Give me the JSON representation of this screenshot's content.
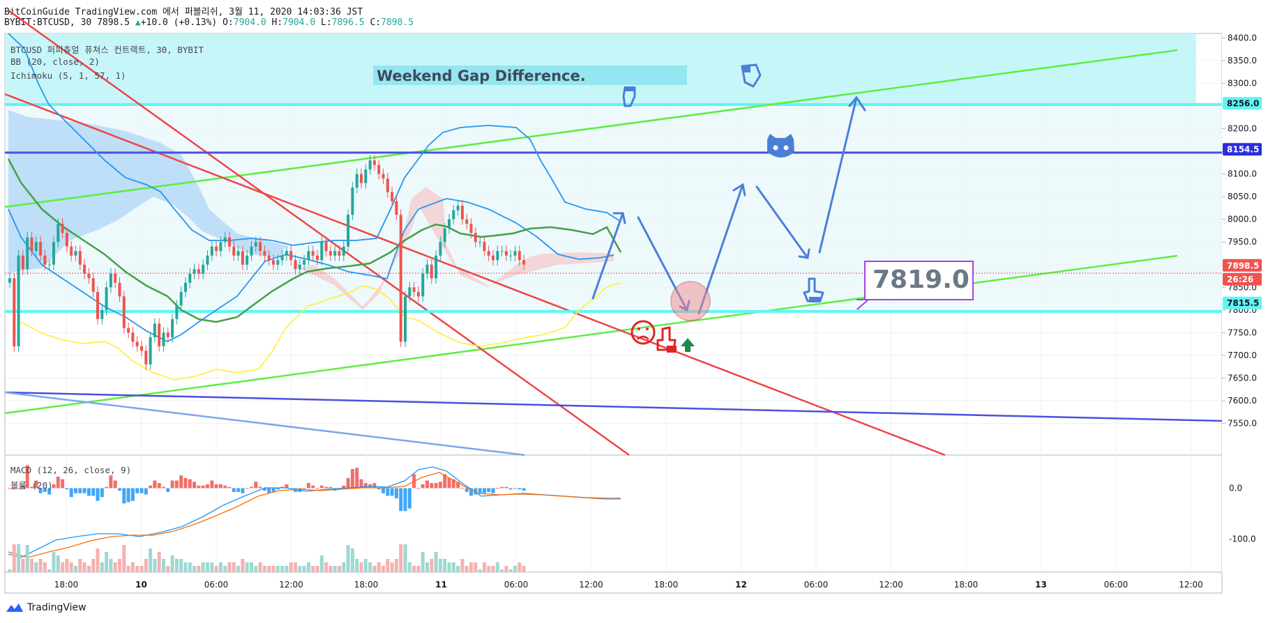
{
  "header": {
    "title": "BitCoinGuide TradingView.com 에서 퍼블리쉬, 3월 11, 2020 14:03:36 JST",
    "symbol": "BYBIT:BTCUSD, 30",
    "last": "7898.5",
    "change": "+10.0 (+0.13%)",
    "o_label": "O:",
    "o": "7904.0",
    "h_label": "H:",
    "h": "7904.0",
    "l_label": "L:",
    "l": "7896.5",
    "c_label": "C:",
    "c": "7898.5"
  },
  "overlays": {
    "series": "BTCUSD 퍼피츄얼 퓨쳐스 컨트랙트, 30, BYBIT",
    "bb": "BB (20, close, 2)",
    "ichimoku": "Ichimoku (5, 1, 57, 1)",
    "macd": "MACD (12, 26, close, 9)",
    "volume": "볼륨 (20)"
  },
  "annotations": {
    "gap_text": "Weekend Gap Difference.",
    "target_text": "7819.0"
  },
  "footer": {
    "brand": "TradingView"
  },
  "colors": {
    "up": "#26a69a",
    "down": "#ef5350",
    "bb": "#2196f3",
    "ichi_green": "#43a047",
    "ichi_yellow": "#ffeb3b",
    "green_line": "#5bef3f",
    "red_line": "#ef4444",
    "blue_line": "#4c4fe0",
    "cyan": "#5ff5f5",
    "arrow": "#4a7fd8",
    "callout": "#a83ee0"
  },
  "chart_data": {
    "type": "candlestick",
    "price_axis": {
      "ylim": [
        7480,
        8410
      ],
      "ticks": [
        "8400.0",
        "8350.0",
        "8300.0",
        "8250.0",
        "8200.0",
        "8150.0",
        "8100.0",
        "8050.0",
        "8000.0",
        "7950.0",
        "7900.0",
        "7850.0",
        "7800.0",
        "7750.0",
        "7700.0",
        "7650.0",
        "7600.0",
        "7550.0"
      ],
      "tick_values": [
        8400,
        8350,
        8300,
        8250,
        8200,
        8150,
        8100,
        8050,
        8000,
        7950,
        7900,
        7850,
        7800,
        7750,
        7700,
        7650,
        7600,
        7550
      ],
      "labels": [
        {
          "text": "8256.0",
          "value": 8256.0,
          "color": "#5ff5f5",
          "text_color": "#131722"
        },
        {
          "text": "8154.5",
          "value": 8154.5,
          "color": "#2a2ee0",
          "text_color": "#ffffff"
        },
        {
          "text": "7898.5",
          "value": 7898.5,
          "color": "#ef5350",
          "text_color": "#ffffff"
        },
        {
          "text": "26:26",
          "value": 7868,
          "color": "#ef5350",
          "text_color": "#ffffff"
        },
        {
          "text": "7815.5",
          "value": 7815.5,
          "color": "#5ff5f5",
          "text_color": "#131722"
        }
      ]
    },
    "macd_axis": {
      "ticks": [
        "0.0",
        "-100.0"
      ],
      "tick_values": [
        0,
        -100
      ],
      "ylim": [
        -165,
        65
      ]
    },
    "time_axis": {
      "labels": [
        {
          "text": "18:00",
          "bold": false
        },
        {
          "text": "10",
          "bold": true
        },
        {
          "text": "06:00",
          "bold": false
        },
        {
          "text": "12:00",
          "bold": false
        },
        {
          "text": "18:00",
          "bold": false
        },
        {
          "text": "11",
          "bold": true
        },
        {
          "text": "06:00",
          "bold": false
        },
        {
          "text": "12:00",
          "bold": false
        },
        {
          "text": "18:00",
          "bold": false
        },
        {
          "text": "12",
          "bold": true
        },
        {
          "text": "06:00",
          "bold": false
        },
        {
          "text": "12:00",
          "bold": false
        },
        {
          "text": "18:00",
          "bold": false
        },
        {
          "text": "13",
          "bold": true
        },
        {
          "text": "06:00",
          "bold": false
        },
        {
          "text": "12:00",
          "bold": false
        }
      ]
    },
    "candles_close": [
      7870,
      7720,
      7920,
      7890,
      7960,
      7930,
      7950,
      7920,
      7900,
      7900,
      7950,
      7990,
      7970,
      7940,
      7920,
      7930,
      7900,
      7880,
      7870,
      7840,
      7780,
      7800,
      7850,
      7880,
      7860,
      7830,
      7760,
      7750,
      7730,
      7720,
      7710,
      7680,
      7740,
      7770,
      7720,
      7750,
      7740,
      7780,
      7810,
      7840,
      7860,
      7880,
      7890,
      7880,
      7900,
      7920,
      7940,
      7930,
      7950,
      7960,
      7940,
      7920,
      7930,
      7900,
      7920,
      7940,
      7950,
      7930,
      7920,
      7910,
      7900,
      7910,
      7920,
      7930,
      7910,
      7890,
      7900,
      7910,
      7930,
      7920,
      7910,
      7950,
      7930,
      7920,
      7930,
      7920,
      7940,
      8010,
      8070,
      8100,
      8080,
      8110,
      8130,
      8120,
      8100,
      8090,
      8060,
      8040,
      8010,
      7730,
      7830,
      7850,
      7840,
      7830,
      7880,
      7900,
      7870,
      7920,
      7950,
      7980,
      8000,
      8020,
      8030,
      8000,
      7990,
      7970,
      7950,
      7950,
      7930,
      7920,
      7910,
      7930,
      7930,
      7920,
      7920,
      7930,
      7910,
      7900
    ]
  }
}
